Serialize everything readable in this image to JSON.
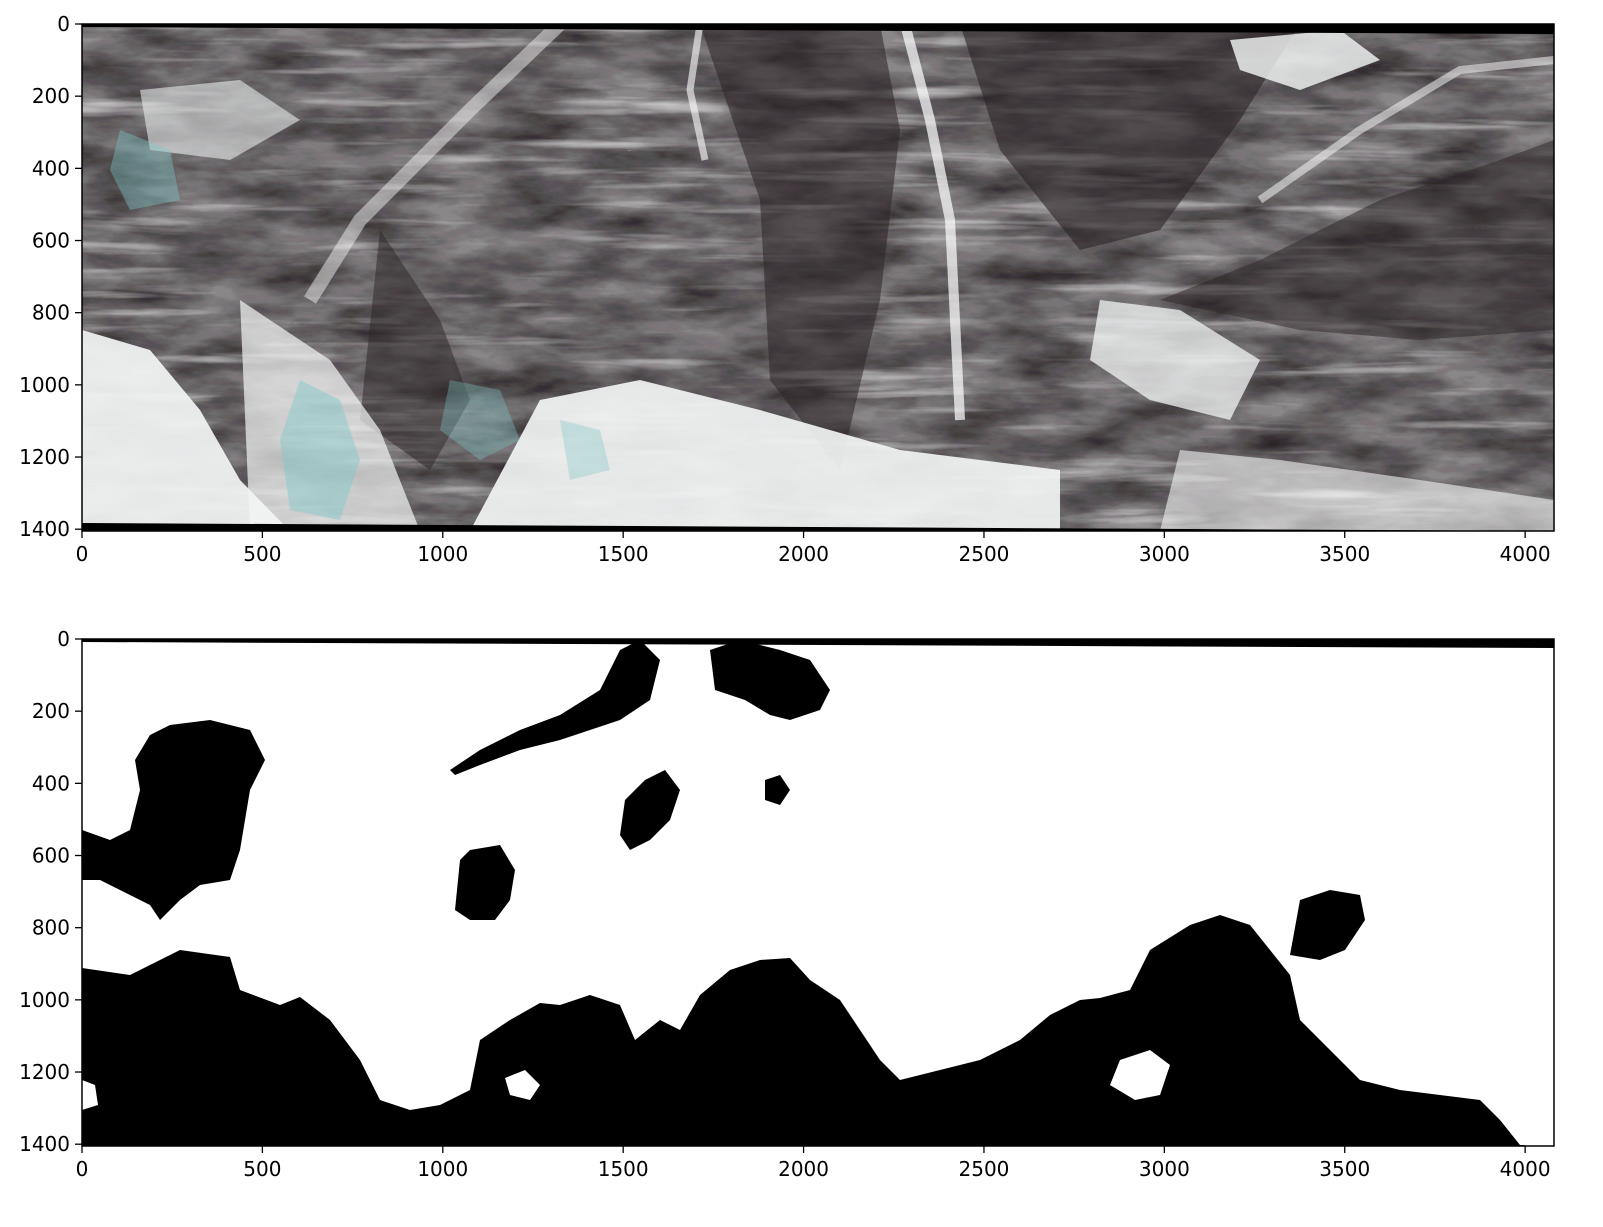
{
  "figure": {
    "panels": [
      {
        "id": "top",
        "description_visible": "satellite image (false colour composite of mountain terrain with snow)",
        "x_ticks": [
          "0",
          "500",
          "1000",
          "1500",
          "2000",
          "2500",
          "3000",
          "3500",
          "4000"
        ],
        "y_ticks": [
          "0",
          "200",
          "400",
          "600",
          "800",
          "1000",
          "1200",
          "1400"
        ]
      },
      {
        "id": "bottom",
        "description_visible": "binary mask (white = snow, black = non-snow)",
        "x_ticks": [
          "0",
          "500",
          "1000",
          "1500",
          "2000",
          "2500",
          "3000",
          "3500",
          "4000"
        ],
        "y_ticks": [
          "0",
          "200",
          "400",
          "600",
          "800",
          "1000",
          "1200",
          "1400"
        ]
      }
    ],
    "colors": {
      "rock_dark": "#2b2326",
      "rock_mid": "#6d6a6b",
      "snow": "#f3f5f5",
      "cyan_tint": "#7fc7c7",
      "mask_fg": "#000000",
      "mask_bg": "#ffffff"
    }
  }
}
